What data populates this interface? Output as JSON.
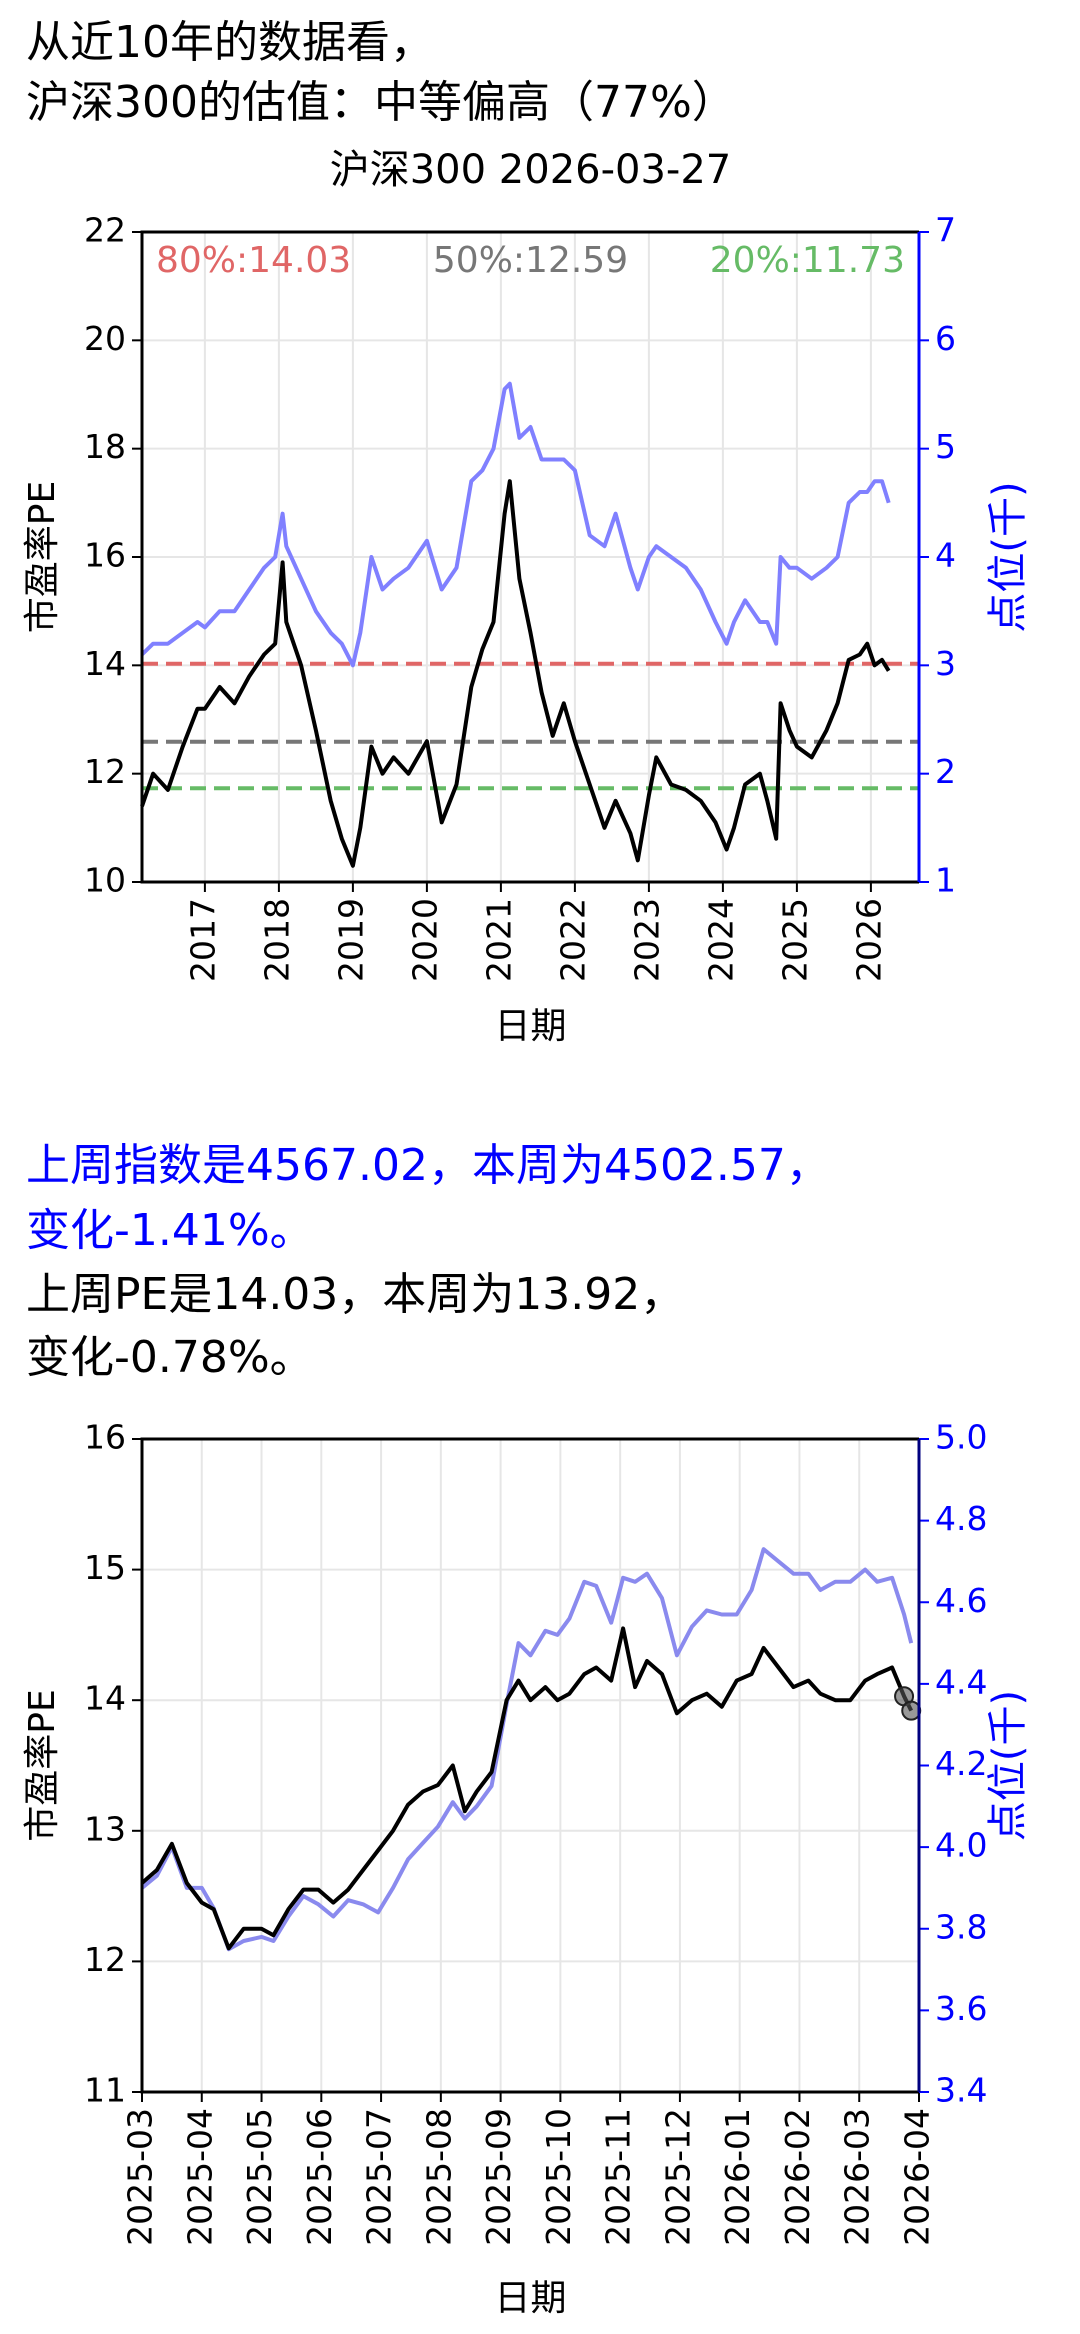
{
  "intro": [
    "从近10年的数据看，",
    "沪深300的估值：中等偏高（77%）"
  ],
  "summary": {
    "index": [
      "上周指数是4567.02，本周为4502.57，",
      "变化-1.41%。"
    ],
    "pe": [
      "上周PE是14.03，本周为13.92，",
      "变化-0.78%。"
    ]
  },
  "chart_data": [
    {
      "type": "line",
      "title": "沪深300 2026-03-27",
      "x_label": "日期",
      "y_label": "市盈率PE",
      "y2_label": "点位(千)",
      "xlim": [
        2016.15,
        2026.65
      ],
      "xticks": [
        2017,
        2018,
        2019,
        2020,
        2021,
        2022,
        2023,
        2024,
        2025,
        2026
      ],
      "ylim": [
        10,
        22
      ],
      "yticks": [
        10,
        12,
        14,
        16,
        18,
        20,
        22
      ],
      "y2lim": [
        1,
        7
      ],
      "y2ticks": [
        1,
        2,
        3,
        4,
        5,
        6,
        7
      ],
      "y2color": "#0000ff",
      "grid": true,
      "hlines": [
        {
          "label": "80%:14.03",
          "value": 14.03,
          "color": "#e06666"
        },
        {
          "label": "50%:12.59",
          "value": 12.59,
          "color": "#777777"
        },
        {
          "label": "20%:11.73",
          "value": 11.73,
          "color": "#66bb66"
        }
      ],
      "x": [
        2016.15,
        2016.3,
        2016.5,
        2016.7,
        2016.9,
        2017.0,
        2017.2,
        2017.4,
        2017.6,
        2017.8,
        2017.95,
        2018.05,
        2018.1,
        2018.3,
        2018.5,
        2018.7,
        2018.85,
        2019.0,
        2019.1,
        2019.25,
        2019.4,
        2019.55,
        2019.75,
        2020.0,
        2020.2,
        2020.4,
        2020.6,
        2020.75,
        2020.9,
        2021.05,
        2021.12,
        2021.25,
        2021.4,
        2021.55,
        2021.7,
        2021.85,
        2022.0,
        2022.2,
        2022.4,
        2022.55,
        2022.75,
        2022.85,
        2023.0,
        2023.1,
        2023.3,
        2023.5,
        2023.7,
        2023.9,
        2024.05,
        2024.15,
        2024.3,
        2024.5,
        2024.6,
        2024.72,
        2024.78,
        2024.9,
        2025.0,
        2025.2,
        2025.4,
        2025.55,
        2025.7,
        2025.85,
        2025.95,
        2026.05,
        2026.15,
        2026.24
      ],
      "series": [
        {
          "name": "市盈率PE",
          "color": "#000000",
          "values": [
            11.4,
            12.0,
            11.7,
            12.5,
            13.2,
            13.2,
            13.6,
            13.3,
            13.8,
            14.2,
            14.4,
            15.9,
            14.8,
            14.0,
            12.8,
            11.5,
            10.8,
            10.3,
            11.0,
            12.5,
            12.0,
            12.3,
            12.0,
            12.6,
            11.1,
            11.8,
            13.6,
            14.3,
            14.8,
            16.8,
            17.4,
            15.6,
            14.6,
            13.5,
            12.7,
            13.3,
            12.6,
            11.8,
            11.0,
            11.5,
            10.9,
            10.4,
            11.6,
            12.3,
            11.8,
            11.7,
            11.5,
            11.1,
            10.6,
            11.0,
            11.8,
            12.0,
            11.5,
            10.8,
            13.3,
            12.8,
            12.5,
            12.3,
            12.8,
            13.3,
            14.1,
            14.2,
            14.4,
            14.0,
            14.1,
            13.9
          ]
        },
        {
          "name": "点位(千)",
          "color": "#8080ff",
          "axis": "y2",
          "values": [
            3.1,
            3.2,
            3.2,
            3.3,
            3.4,
            3.35,
            3.5,
            3.5,
            3.7,
            3.9,
            4.0,
            4.4,
            4.1,
            3.8,
            3.5,
            3.3,
            3.2,
            3.0,
            3.3,
            4.0,
            3.7,
            3.8,
            3.9,
            4.15,
            3.7,
            3.9,
            4.7,
            4.8,
            5.0,
            5.55,
            5.6,
            5.1,
            5.2,
            4.9,
            4.9,
            4.9,
            4.8,
            4.2,
            4.1,
            4.4,
            3.9,
            3.7,
            4.0,
            4.1,
            4.0,
            3.9,
            3.7,
            3.4,
            3.2,
            3.4,
            3.6,
            3.4,
            3.4,
            3.2,
            4.0,
            3.9,
            3.9,
            3.8,
            3.9,
            4.0,
            4.5,
            4.6,
            4.6,
            4.7,
            4.7,
            4.5
          ]
        }
      ]
    },
    {
      "type": "line",
      "x_label": "日期",
      "y_label": "市盈率PE",
      "y2_label": "点位(千)",
      "xlim": [
        0,
        13
      ],
      "xticks": [
        {
          "value": 0,
          "label": "2025-03"
        },
        {
          "value": 1,
          "label": "2025-04"
        },
        {
          "value": 2,
          "label": "2025-05"
        },
        {
          "value": 3,
          "label": "2025-06"
        },
        {
          "value": 4,
          "label": "2025-07"
        },
        {
          "value": 5,
          "label": "2025-08"
        },
        {
          "value": 6,
          "label": "2025-09"
        },
        {
          "value": 7,
          "label": "2025-10"
        },
        {
          "value": 8,
          "label": "2025-11"
        },
        {
          "value": 9,
          "label": "2025-12"
        },
        {
          "value": 10,
          "label": "2026-01"
        },
        {
          "value": 11,
          "label": "2026-02"
        },
        {
          "value": 12,
          "label": "2026-03"
        },
        {
          "value": 13,
          "label": "2026-04"
        }
      ],
      "ylim": [
        11,
        16
      ],
      "yticks": [
        11,
        12,
        13,
        14,
        15,
        16
      ],
      "y2lim": [
        3.4,
        5.0
      ],
      "y2ticks": [
        3.4,
        3.6,
        3.8,
        {
          "value": 4,
          "label": "4.0"
        },
        4.2,
        4.4,
        4.6,
        4.8,
        {
          "value": 5,
          "label": "5.0"
        }
      ],
      "y2color": "#0000ff",
      "grid": true,
      "highlight_last": 2,
      "x": [
        0,
        0.25,
        0.5,
        0.75,
        1.0,
        1.2,
        1.45,
        1.7,
        2.0,
        2.2,
        2.45,
        2.7,
        2.95,
        3.2,
        3.45,
        3.7,
        3.95,
        4.2,
        4.45,
        4.7,
        4.95,
        5.2,
        5.4,
        5.6,
        5.85,
        6.1,
        6.3,
        6.5,
        6.75,
        6.95,
        7.15,
        7.4,
        7.6,
        7.85,
        8.05,
        8.25,
        8.45,
        8.7,
        8.95,
        9.2,
        9.45,
        9.7,
        9.95,
        10.2,
        10.4,
        10.65,
        10.9,
        11.15,
        11.35,
        11.6,
        11.85,
        12.1,
        12.3,
        12.55,
        12.75,
        12.87
      ],
      "series": [
        {
          "name": "市盈率PE",
          "color": "#000000",
          "values": [
            12.6,
            12.7,
            12.9,
            12.6,
            12.45,
            12.4,
            12.1,
            12.25,
            12.25,
            12.2,
            12.4,
            12.55,
            12.55,
            12.45,
            12.55,
            12.7,
            12.85,
            13.0,
            13.2,
            13.3,
            13.35,
            13.5,
            13.15,
            13.3,
            13.45,
            14.0,
            14.15,
            14.0,
            14.1,
            14.0,
            14.05,
            14.2,
            14.25,
            14.15,
            14.55,
            14.1,
            14.3,
            14.2,
            13.9,
            14.0,
            14.05,
            13.95,
            14.15,
            14.2,
            14.4,
            14.25,
            14.1,
            14.15,
            14.05,
            14.0,
            14.0,
            14.15,
            14.2,
            14.25,
            14.03,
            13.92
          ]
        },
        {
          "name": "点位(千)",
          "color": "#8a8aee",
          "axis": "y2",
          "values": [
            3.9,
            3.93,
            4.0,
            3.9,
            3.9,
            3.85,
            3.75,
            3.77,
            3.78,
            3.77,
            3.83,
            3.88,
            3.86,
            3.83,
            3.87,
            3.86,
            3.84,
            3.9,
            3.97,
            4.01,
            4.05,
            4.11,
            4.07,
            4.1,
            4.15,
            4.35,
            4.5,
            4.47,
            4.53,
            4.52,
            4.56,
            4.65,
            4.64,
            4.55,
            4.66,
            4.65,
            4.67,
            4.61,
            4.47,
            4.54,
            4.58,
            4.57,
            4.57,
            4.63,
            4.73,
            4.7,
            4.67,
            4.67,
            4.63,
            4.65,
            4.65,
            4.68,
            4.65,
            4.66,
            4.57,
            4.5
          ]
        }
      ]
    }
  ]
}
